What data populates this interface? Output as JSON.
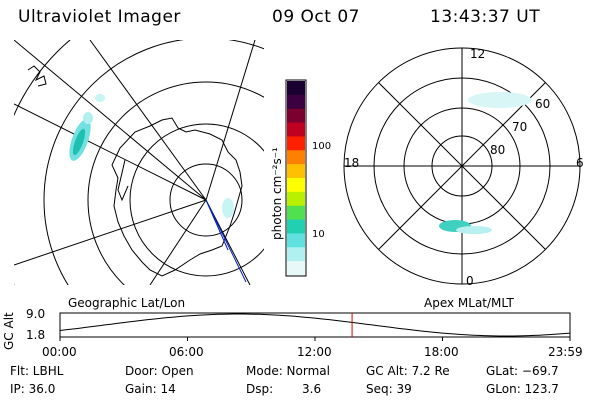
{
  "header": {
    "instrument": "Ultraviolet Imager",
    "date": "09 Oct 07",
    "time": "13:43:37 UT"
  },
  "maps": {
    "left_label": "Geographic Lat/Lon",
    "right_label": "Apex MLat/MLT"
  },
  "colorbar": {
    "unit_label": "photon cm⁻²s⁻¹",
    "ticks": [
      "100",
      "10"
    ],
    "colors": [
      "#1a0030",
      "#3a0040",
      "#7a0030",
      "#c00020",
      "#ff2000",
      "#ff8000",
      "#ffc000",
      "#ffff00",
      "#b8f000",
      "#50e050",
      "#20d0b0",
      "#60e0e0",
      "#b0f0f0",
      "#e8f8f8"
    ]
  },
  "polar": {
    "mlt_labels": [
      "12",
      "18",
      "6",
      "0"
    ],
    "lat_labels": [
      "60",
      "70",
      "80"
    ]
  },
  "altitude": {
    "axis_label": "GC Alt",
    "y_ticks": [
      "9.0",
      "1.8"
    ],
    "x_ticks": [
      "00:00",
      "06:00",
      "12:00",
      "18:00",
      "23:59"
    ],
    "current_time_fraction": 0.5727
  },
  "info": {
    "filter": "Flt: LBHL",
    "ip": "IP: 36.0",
    "door": "Door: Open",
    "gain": "Gain: 14",
    "mode": "Mode: Normal",
    "dsp_label": "Dsp:",
    "dsp_value": "3.6",
    "gc_alt": "GC Alt: 7.2 Re",
    "seq": "Seq: 39",
    "glat": "GLat: −69.7",
    "glon": "GLon: 123.7"
  }
}
